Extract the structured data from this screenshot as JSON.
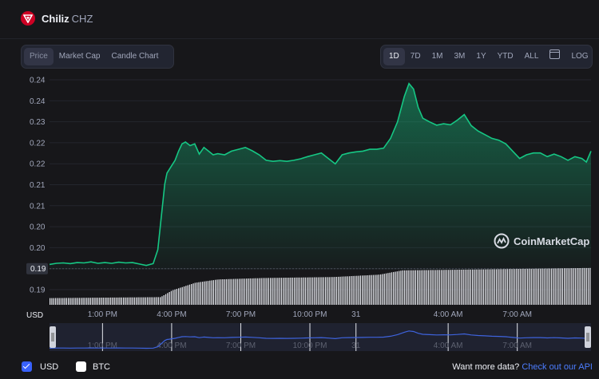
{
  "coin": {
    "name": "Chiliz",
    "symbol": "CHZ"
  },
  "chart_tabs": [
    "Price",
    "Market Cap",
    "Candle Chart"
  ],
  "range_buttons": [
    "1D",
    "7D",
    "1M",
    "3M",
    "1Y",
    "YTD",
    "ALL"
  ],
  "log_label": "LOG",
  "watermark": "CoinMarketCap",
  "footer": {
    "usd_label": "USD",
    "btc_label": "BTC",
    "more_text": "Want more data?",
    "link_text": "Check out our API"
  },
  "colors": {
    "line": "#16c784",
    "brand_red": "#cd0124",
    "accent_blue": "#3861fb",
    "nav_line": "#3e63dd"
  },
  "chart_data": {
    "type": "area",
    "xlabel": "",
    "ylabel": "",
    "y_tick_labels": [
      "0.24",
      "0.24",
      "0.23",
      "0.22",
      "0.22",
      "0.21",
      "0.21",
      "0.20",
      "0.20",
      "0.19",
      "0.19"
    ],
    "y_unit_label": "USD",
    "current_price_label": "0.19",
    "x_tick_labels": [
      "1:00 PM",
      "4:00 PM",
      "7:00 PM",
      "10:00 PM",
      "31",
      "4:00 AM",
      "7:00 AM"
    ],
    "x_tick_hours": [
      13,
      16,
      19,
      22,
      24,
      28,
      31
    ],
    "x_range_hours": [
      10.7,
      34.2
    ],
    "ylim": [
      0.18855,
      0.2414
    ],
    "grid": true,
    "series": [
      {
        "x": [
          10.7,
          11.0,
          11.3,
          11.6,
          11.9,
          12.2,
          12.5,
          12.8,
          13.1,
          13.4,
          13.7,
          14.0,
          14.3,
          14.6,
          14.9,
          15.2,
          15.4,
          15.5,
          15.6,
          15.7,
          15.8,
          15.9,
          16.0,
          16.15,
          16.3,
          16.45,
          16.6,
          16.8,
          17.0,
          17.2,
          17.4,
          17.6,
          17.8,
          18.0,
          18.3,
          18.6,
          18.9,
          19.2,
          19.5,
          19.8,
          20.1,
          20.4,
          20.7,
          21.0,
          21.3,
          21.6,
          21.9,
          22.2,
          22.5,
          22.8,
          23.1,
          23.4,
          23.7,
          24.0,
          24.3,
          24.6,
          24.9,
          25.2,
          25.5,
          25.8,
          26.1,
          26.3,
          26.5,
          26.7,
          26.9,
          27.2,
          27.5,
          27.8,
          28.1,
          28.4,
          28.7,
          29.0,
          29.3,
          29.6,
          29.9,
          30.2,
          30.5,
          30.8,
          31.1,
          31.4,
          31.7,
          32.0,
          32.3,
          32.6,
          32.9,
          33.2,
          33.5,
          33.8,
          34.0,
          34.2
        ],
        "y": [
          0.19,
          0.1903,
          0.1904,
          0.1902,
          0.1905,
          0.1904,
          0.1907,
          0.1903,
          0.1905,
          0.1903,
          0.1906,
          0.1904,
          0.1905,
          0.1901,
          0.1897,
          0.1902,
          0.194,
          0.2,
          0.206,
          0.212,
          0.215,
          0.216,
          0.217,
          0.2185,
          0.221,
          0.223,
          0.2235,
          0.2225,
          0.223,
          0.2202,
          0.222,
          0.221,
          0.22,
          0.2203,
          0.22,
          0.221,
          0.2215,
          0.222,
          0.2211,
          0.22,
          0.2185,
          0.2182,
          0.2184,
          0.2182,
          0.2185,
          0.2189,
          0.2195,
          0.22,
          0.2205,
          0.219,
          0.2175,
          0.22,
          0.2205,
          0.2208,
          0.221,
          0.2215,
          0.2215,
          0.2218,
          0.2245,
          0.229,
          0.236,
          0.2395,
          0.238,
          0.233,
          0.23,
          0.229,
          0.2281,
          0.2285,
          0.2282,
          0.2295,
          0.231,
          0.228,
          0.2265,
          0.2255,
          0.2245,
          0.224,
          0.223,
          0.221,
          0.219,
          0.22,
          0.2205,
          0.2205,
          0.2195,
          0.2202,
          0.2195,
          0.2185,
          0.2195,
          0.219,
          0.218,
          0.221
        ]
      }
    ],
    "volume": {
      "x": [
        10.7,
        15.5,
        16.0,
        17.0,
        18.0,
        20.0,
        23.0,
        25.0,
        26.0,
        28.0,
        31.0,
        34.2
      ],
      "v": [
        0.14,
        0.16,
        0.3,
        0.46,
        0.53,
        0.56,
        0.58,
        0.63,
        0.72,
        0.73,
        0.75,
        0.77
      ]
    }
  }
}
